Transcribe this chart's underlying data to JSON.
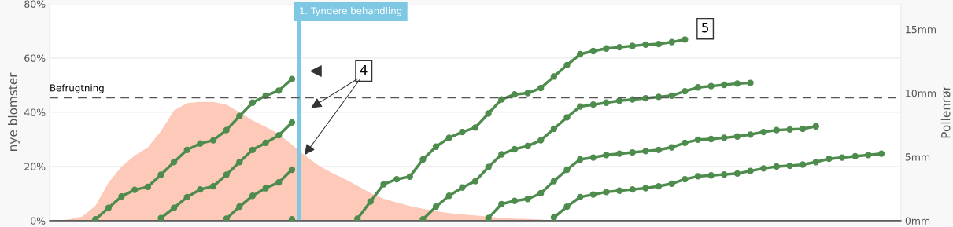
{
  "chart_data": {
    "type": "area",
    "ylabel": "nye blomster",
    "y2label": "Pollenrør",
    "categories": [
      null,
      null,
      null,
      null,
      null,
      null,
      null,
      null,
      null,
      null,
      null,
      null,
      null,
      null,
      null,
      null,
      null,
      null,
      null,
      null,
      null,
      null,
      null,
      null,
      null,
      null,
      null,
      null,
      null,
      null,
      null,
      null,
      null,
      null,
      null,
      null,
      null,
      null,
      null,
      null,
      null,
      null,
      null,
      null,
      null,
      null,
      null,
      null,
      null,
      null,
      null,
      null,
      null,
      null,
      null,
      null,
      null,
      null,
      null,
      null,
      null,
      null,
      null,
      null,
      null
    ],
    "ylim": [
      0,
      80
    ],
    "yticks": [
      {
        "value": 0,
        "label": "0%"
      },
      {
        "value": 20,
        "label": "20%"
      },
      {
        "value": 40,
        "label": "40%"
      },
      {
        "value": 60,
        "label": "60%"
      },
      {
        "value": 80,
        "label": "80%"
      }
    ],
    "y2lim": [
      0,
      17
    ],
    "y2ticks": [
      {
        "value": 0,
        "label": "0mm"
      },
      {
        "value": 5,
        "label": "5mm"
      },
      {
        "value": 10,
        "label": "10mm"
      },
      {
        "value": 15,
        "label": "15mm"
      }
    ],
    "grid": "y",
    "series": [
      {
        "color": "#fdc9b8",
        "values": [
          0,
          0.5,
          1.6,
          5.5,
          14,
          20,
          24,
          27,
          33,
          40.6,
          43.4,
          43.8,
          43.8,
          42.8,
          40,
          37,
          34.6,
          32,
          28,
          24,
          20.5,
          17.7,
          15.5,
          12.9,
          10.2,
          8.1,
          6.7,
          5.4,
          4.4,
          3.5,
          2.8,
          2.3,
          1.9,
          1.5,
          1.0,
          0.8,
          0.6,
          0.4,
          0,
          0,
          0,
          0,
          0,
          0,
          0,
          0,
          0,
          0,
          0,
          0,
          0,
          0,
          0,
          0,
          0,
          0,
          0,
          0,
          0,
          0,
          0,
          0,
          0,
          0,
          0
        ]
      },
      {
        "type": "line",
        "axis": "y2",
        "marker": "circle",
        "color": "#4e8c4e",
        "values": [
          null,
          null,
          null,
          0.1,
          1.0,
          1.9,
          2.42,
          2.65,
          3.6,
          4.6,
          5.55,
          6.05,
          6.3,
          7.1,
          8.2,
          9.25,
          9.8,
          10.2,
          11.1,
          null,
          null,
          null,
          null,
          null,
          null,
          null,
          null,
          null,
          null,
          null,
          null,
          null,
          null,
          null,
          null,
          null,
          null,
          null,
          null,
          null,
          null,
          null,
          null,
          null,
          null,
          null,
          null,
          null,
          null,
          null,
          null,
          null,
          null,
          null,
          null,
          null,
          null,
          null,
          null,
          null,
          null,
          null,
          null,
          null,
          null
        ]
      },
      {
        "type": "line",
        "axis": "y2",
        "marker": "circle",
        "color": "#4e8c4e",
        "values": [
          null,
          null,
          null,
          null,
          null,
          null,
          null,
          null,
          0.2,
          1.0,
          1.85,
          2.45,
          2.7,
          3.6,
          4.6,
          5.55,
          6.1,
          6.7,
          7.7,
          null,
          null,
          null,
          null,
          null,
          null,
          null,
          null,
          null,
          null,
          null,
          null,
          null,
          null,
          null,
          null,
          null,
          null,
          null,
          null,
          null,
          null,
          null,
          null,
          null,
          null,
          null,
          null,
          null,
          null,
          null,
          null,
          null,
          null,
          null,
          null,
          null,
          null,
          null,
          null,
          null,
          null,
          null,
          null,
          null,
          null
        ]
      },
      {
        "type": "line",
        "axis": "y2",
        "marker": "circle",
        "color": "#4e8c4e",
        "values": [
          null,
          null,
          null,
          null,
          null,
          null,
          null,
          null,
          null,
          null,
          null,
          null,
          null,
          0.15,
          1.1,
          1.95,
          2.55,
          3.0,
          4.0,
          null,
          null,
          null,
          null,
          null,
          null,
          null,
          null,
          null,
          null,
          null,
          null,
          null,
          null,
          null,
          null,
          null,
          null,
          null,
          null,
          null,
          null,
          null,
          null,
          null,
          null,
          null,
          null,
          null,
          null,
          null,
          null,
          null,
          null,
          null,
          null,
          null,
          null,
          null,
          null,
          null,
          null,
          null,
          null,
          null,
          null
        ]
      },
      {
        "type": "line",
        "axis": "y2",
        "marker": "circle",
        "color": "#4e8c4e",
        "values": [
          null,
          null,
          null,
          null,
          null,
          null,
          null,
          null,
          null,
          null,
          null,
          null,
          null,
          null,
          null,
          null,
          null,
          null,
          0.1,
          null,
          null,
          null,
          null,
          null,
          null,
          null,
          null,
          null,
          null,
          null,
          null,
          null,
          null,
          null,
          null,
          null,
          null,
          null,
          null,
          null,
          null,
          null,
          null,
          null,
          null,
          null,
          null,
          null,
          null,
          null,
          null,
          null,
          null,
          null,
          null,
          null,
          null,
          null,
          null,
          null,
          null,
          null,
          null,
          null,
          null
        ]
      },
      {
        "type": "line",
        "axis": "y2",
        "marker": "circle",
        "color": "#4e8c4e",
        "values": [
          null,
          null,
          null,
          null,
          null,
          null,
          null,
          null,
          null,
          null,
          null,
          null,
          null,
          null,
          null,
          null,
          null,
          null,
          null,
          null,
          null,
          null,
          null,
          0.15,
          1.5,
          2.85,
          3.25,
          3.45,
          4.8,
          5.8,
          6.5,
          6.95,
          7.3,
          8.4,
          9.5,
          9.9,
          10.0,
          10.4,
          11.3,
          12.2,
          13.05,
          13.3,
          13.5,
          13.6,
          13.7,
          13.8,
          13.85,
          14.0,
          14.2,
          null,
          null,
          null,
          null,
          null,
          null,
          null,
          null,
          null,
          null,
          null,
          null,
          null,
          null,
          null,
          null
        ]
      },
      {
        "type": "line",
        "axis": "y2",
        "marker": "circle",
        "color": "#4e8c4e",
        "values": [
          null,
          null,
          null,
          null,
          null,
          null,
          null,
          null,
          null,
          null,
          null,
          null,
          null,
          null,
          null,
          null,
          null,
          null,
          null,
          null,
          null,
          null,
          null,
          null,
          null,
          null,
          null,
          null,
          0.1,
          1.1,
          1.95,
          2.6,
          3.1,
          4.2,
          5.2,
          5.6,
          5.85,
          6.3,
          7.2,
          8.1,
          8.95,
          9.1,
          9.25,
          9.4,
          9.5,
          9.6,
          9.7,
          9.8,
          10.15,
          10.45,
          10.55,
          10.65,
          10.75,
          10.8,
          null,
          null,
          null,
          null,
          null,
          null,
          null,
          null,
          null,
          null,
          null
        ]
      },
      {
        "type": "line",
        "axis": "y2",
        "marker": "circle",
        "color": "#4e8c4e",
        "values": [
          null,
          null,
          null,
          null,
          null,
          null,
          null,
          null,
          null,
          null,
          null,
          null,
          null,
          null,
          null,
          null,
          null,
          null,
          null,
          null,
          null,
          null,
          null,
          null,
          null,
          null,
          null,
          null,
          null,
          null,
          null,
          null,
          null,
          0.2,
          1.3,
          1.55,
          1.7,
          2.15,
          3.1,
          4.0,
          4.8,
          4.95,
          5.15,
          5.25,
          5.35,
          5.45,
          5.55,
          5.75,
          6.1,
          6.35,
          6.4,
          6.5,
          6.6,
          6.75,
          6.95,
          7.1,
          7.15,
          7.2,
          7.4,
          null,
          null,
          null,
          null,
          null,
          null
        ]
      },
      {
        "type": "line",
        "axis": "y2",
        "marker": "circle",
        "color": "#4e8c4e",
        "values": [
          null,
          null,
          null,
          null,
          null,
          null,
          null,
          null,
          null,
          null,
          null,
          null,
          null,
          null,
          null,
          null,
          null,
          null,
          null,
          null,
          null,
          null,
          null,
          null,
          null,
          null,
          null,
          null,
          null,
          null,
          null,
          null,
          null,
          null,
          null,
          null,
          null,
          null,
          0.25,
          1.1,
          1.85,
          2.05,
          2.25,
          2.35,
          2.45,
          2.55,
          2.7,
          2.9,
          3.25,
          3.48,
          3.55,
          3.62,
          3.7,
          3.9,
          4.1,
          4.25,
          4.3,
          4.4,
          4.6,
          4.85,
          4.95,
          5.05,
          5.15,
          5.25,
          null
        ]
      }
    ],
    "ref_lines": [
      {
        "axis": "y2",
        "value": 9.65,
        "label": "Befrugtning",
        "color": "#555555",
        "line_style": "dashed"
      }
    ],
    "annotations": [
      "1. Tyndere behandling",
      "4",
      "5"
    ]
  }
}
